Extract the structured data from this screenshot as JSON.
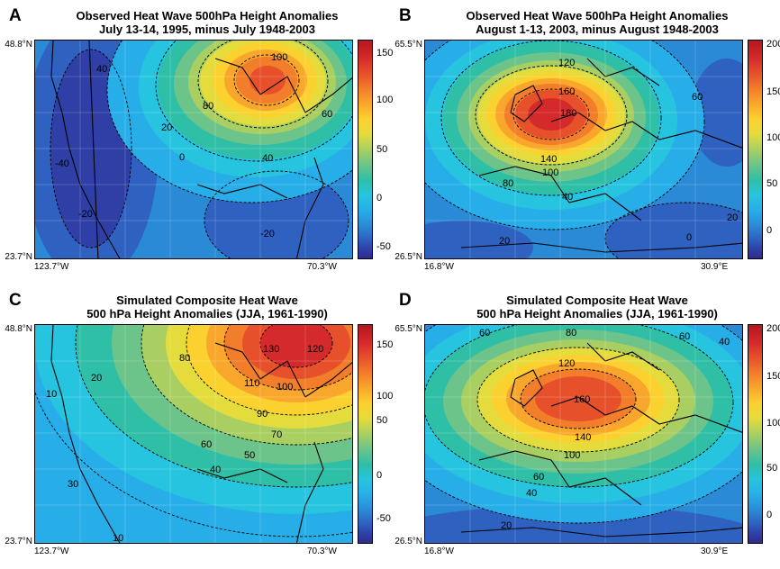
{
  "panels": [
    {
      "letter": "A",
      "title_line1": "Observed Heat Wave 500hPa Height Anomalies",
      "title_line2": "July 13-14, 1995, minus July 1948-2003",
      "lat_top": "48.8°N",
      "lat_bottom": "23.7°N",
      "lon_left": "123.7°W",
      "lon_right": "70.3°W",
      "colorbar_ticks": [
        "150",
        "100",
        "50",
        "0",
        "-50"
      ],
      "contour_labels": [
        "100",
        "80",
        "60",
        "40",
        "40",
        "20",
        "0",
        "-20",
        "-20",
        "-40"
      ]
    },
    {
      "letter": "B",
      "title_line1": "Observed Heat Wave 500hPa Height Anomalies",
      "title_line2": "August 1-13, 2003, minus August 1948-2003",
      "lat_top": "65.5°N",
      "lat_bottom": "26.5°N",
      "lon_left": "16.8°W",
      "lon_right": "30.9°E",
      "colorbar_ticks": [
        "200",
        "150",
        "100",
        "50",
        "0"
      ],
      "contour_labels": [
        "120",
        "160",
        "180",
        "60",
        "140",
        "100",
        "80",
        "40",
        "20",
        "0",
        "20"
      ]
    },
    {
      "letter": "C",
      "title_line1": "Simulated Composite Heat Wave",
      "title_line2": "500 hPa Height Anomalies (JJA, 1961-1990)",
      "lat_top": "48.8°N",
      "lat_bottom": "23.7°N",
      "lon_left": "123.7°W",
      "lon_right": "70.3°W",
      "colorbar_ticks": [
        "150",
        "100",
        "50",
        "0",
        "-50"
      ],
      "contour_labels": [
        "130",
        "120",
        "110",
        "100",
        "90",
        "80",
        "70",
        "60",
        "50",
        "40",
        "30",
        "20",
        "10",
        "10"
      ]
    },
    {
      "letter": "D",
      "title_line1": "Simulated Composite Heat Wave",
      "title_line2": "500 hPa Height Anomalies (JJA, 1961-1990)",
      "lat_top": "65.5°N",
      "lat_bottom": "26.5°N",
      "lon_left": "16.8°W",
      "lon_right": "30.9°E",
      "colorbar_ticks": [
        "200",
        "150",
        "100",
        "50",
        "0"
      ],
      "contour_labels": [
        "60",
        "80",
        "60",
        "40",
        "120",
        "160",
        "140",
        "100",
        "60",
        "40",
        "20"
      ]
    }
  ],
  "colors": {
    "scale": [
      "#ffffff",
      "#2d2a8f",
      "#2f3fa6",
      "#2f62c0",
      "#2a8ad6",
      "#27aee8",
      "#27c4df",
      "#2fbfa6",
      "#6cc48a",
      "#a9cf62",
      "#e4dc3c",
      "#fbd12f",
      "#f9a72c",
      "#f27d2a",
      "#e6502b",
      "#d42a2b",
      "#b3171f"
    ]
  }
}
